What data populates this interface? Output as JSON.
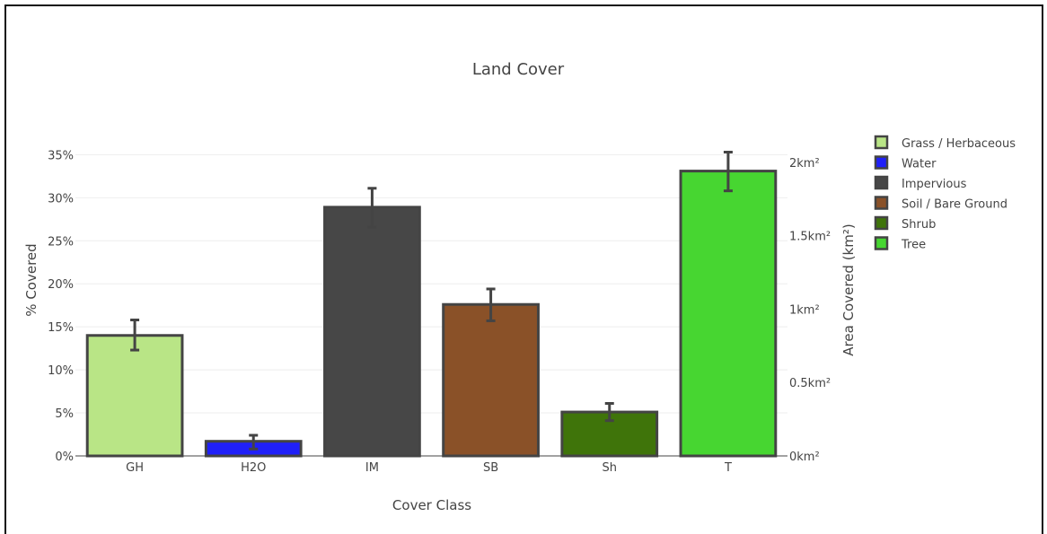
{
  "chart_data": {
    "type": "bar",
    "title": "Land Cover",
    "xlabel": "Cover Class",
    "ylabel": "% Covered",
    "y2label": "Area Covered (km²)",
    "categories": [
      "GH",
      "H2O",
      "IM",
      "SB",
      "Sh",
      "T"
    ],
    "values": [
      14.0,
      1.7,
      28.9,
      17.6,
      5.1,
      33.1
    ],
    "error_low": [
      12.3,
      0.8,
      26.6,
      15.7,
      4.1,
      30.8
    ],
    "error_high": [
      15.8,
      2.4,
      31.1,
      19.4,
      6.1,
      35.3
    ],
    "colors": [
      "#b9e586",
      "#2020f8",
      "#474747",
      "#8a5128",
      "#3f740a",
      "#47d631"
    ],
    "bar_border_color": "#444444",
    "ylim": [
      0,
      36.5
    ],
    "yticks": [
      {
        "value": 0,
        "label": "0%"
      },
      {
        "value": 5,
        "label": "5%"
      },
      {
        "value": 10,
        "label": "10%"
      },
      {
        "value": 15,
        "label": "15%"
      },
      {
        "value": 20,
        "label": "20%"
      },
      {
        "value": 25,
        "label": "25%"
      },
      {
        "value": 30,
        "label": "30%"
      },
      {
        "value": 35,
        "label": "35%"
      }
    ],
    "y2lim": [
      0,
      2.14
    ],
    "y2ticks": [
      {
        "value": 0,
        "label": "0km²"
      },
      {
        "value": 0.5,
        "label": "0.5km²"
      },
      {
        "value": 1,
        "label": "1km²"
      },
      {
        "value": 1.5,
        "label": "1.5km²"
      },
      {
        "value": 2,
        "label": "2km²"
      }
    ],
    "grid": true,
    "legend_position": "right",
    "legend": [
      {
        "label": "Grass / Herbaceous",
        "color": "#b9e586"
      },
      {
        "label": "Water",
        "color": "#2020f8"
      },
      {
        "label": "Impervious",
        "color": "#474747"
      },
      {
        "label": "Soil / Bare Ground",
        "color": "#8a5128"
      },
      {
        "label": "Shrub",
        "color": "#3f740a"
      },
      {
        "label": "Tree",
        "color": "#47d631"
      }
    ]
  }
}
